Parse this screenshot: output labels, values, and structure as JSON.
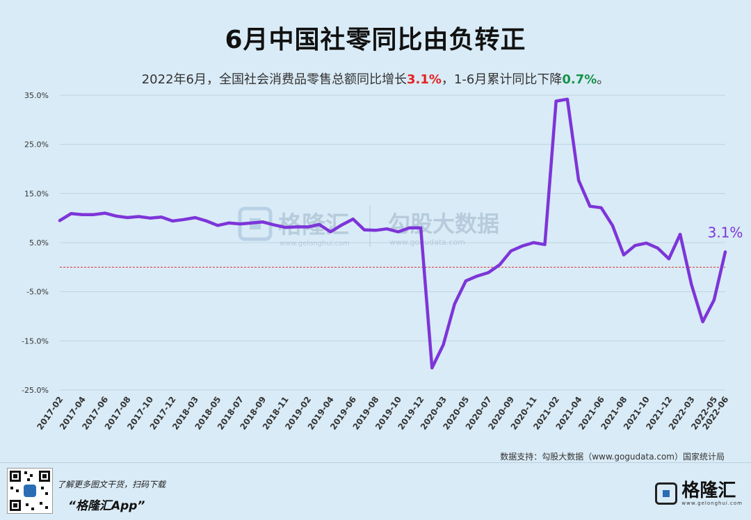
{
  "chart_data": {
    "type": "line",
    "title": "6月中国社零同比由负转正",
    "subtitle": {
      "prefix": "2022年6月，全国社会消费品零售总额同比增长",
      "value1": "3.1%",
      "middle": "，1-6月累计同比下降",
      "value2": "0.7%",
      "suffix": "。"
    },
    "x": [
      "2017-02",
      "2017-03",
      "2017-04",
      "2017-05",
      "2017-06",
      "2017-07",
      "2017-08",
      "2017-09",
      "2017-10",
      "2017-11",
      "2017-12",
      "2018-02",
      "2018-03",
      "2018-04",
      "2018-05",
      "2018-06",
      "2018-07",
      "2018-08",
      "2018-09",
      "2018-10",
      "2018-11",
      "2018-12",
      "2019-02",
      "2019-03",
      "2019-04",
      "2019-05",
      "2019-06",
      "2019-07",
      "2019-08",
      "2019-09",
      "2019-10",
      "2019-11",
      "2019-12",
      "2020-02",
      "2020-03",
      "2020-04",
      "2020-05",
      "2020-06",
      "2020-07",
      "2020-08",
      "2020-09",
      "2020-10",
      "2020-11",
      "2020-12",
      "2021-02",
      "2021-03",
      "2021-04",
      "2021-05",
      "2021-06",
      "2021-07",
      "2021-08",
      "2021-09",
      "2021-10",
      "2021-11",
      "2021-12",
      "2022-02",
      "2022-03",
      "2022-04",
      "2022-05",
      "2022-06"
    ],
    "series": [
      {
        "name": "",
        "color": "#7d35d8",
        "values": [
          9.5,
          10.9,
          10.7,
          10.7,
          11.0,
          10.4,
          10.1,
          10.3,
          10.0,
          10.2,
          9.4,
          9.7,
          10.1,
          9.4,
          8.5,
          9.0,
          8.8,
          9.0,
          9.2,
          8.6,
          8.1,
          8.2,
          8.2,
          8.7,
          7.2,
          8.6,
          9.8,
          7.6,
          7.5,
          7.8,
          7.2,
          8.0,
          8.0,
          -20.5,
          -15.8,
          -7.5,
          -2.8,
          -1.8,
          -1.1,
          0.5,
          3.3,
          4.3,
          5.0,
          4.6,
          33.8,
          34.2,
          17.7,
          12.4,
          12.1,
          8.5,
          2.5,
          4.4,
          4.9,
          3.9,
          1.7,
          6.7,
          -3.5,
          -11.1,
          -6.7,
          3.1
        ]
      }
    ],
    "x_tick_labels": [
      "2017-02",
      "2017-04",
      "2017-06",
      "2017-08",
      "2017-10",
      "2017-12",
      "2018-03",
      "2018-05",
      "2018-07",
      "2018-09",
      "2018-11",
      "2019-02",
      "2019-04",
      "2019-06",
      "2019-08",
      "2019-10",
      "2019-12",
      "2020-03",
      "2020-05",
      "2020-07",
      "2020-09",
      "2020-11",
      "2021-02",
      "2021-04",
      "2021-06",
      "2021-08",
      "2021-10",
      "2021-12",
      "2022-03",
      "2022-05",
      "2022-06"
    ],
    "y_ticks": [
      -25,
      -15,
      -5,
      5,
      15,
      25,
      35
    ],
    "y_tick_labels": [
      "-25.0%",
      "-15.0%",
      "-5.0%",
      "5.0%",
      "15.0%",
      "25.0%",
      "35.0%"
    ],
    "ylim": [
      -25,
      35
    ],
    "reference_line": {
      "value": 0,
      "color": "#e03030",
      "style": "dashed"
    },
    "last_point_label": "3.1%",
    "grid": true,
    "watermark": {
      "brand1": "格隆汇",
      "brand1_url": "www.gelonghui.com",
      "brand2": "勾股大数据",
      "brand2_url": "www.gogudata.com"
    }
  },
  "source_text": "数据支持：勾股大数据（www.gogudata.com）国家统计局",
  "footer": {
    "line1": "了解更多图文干货，扫码下载",
    "line2": "“格隆汇App”",
    "brand_name": "格隆汇",
    "brand_url": "www.gelonghui.com"
  },
  "colors": {
    "background": "#d9ebf6",
    "line": "#7d35d8",
    "positive": "#e52220",
    "negative": "#16934a"
  }
}
